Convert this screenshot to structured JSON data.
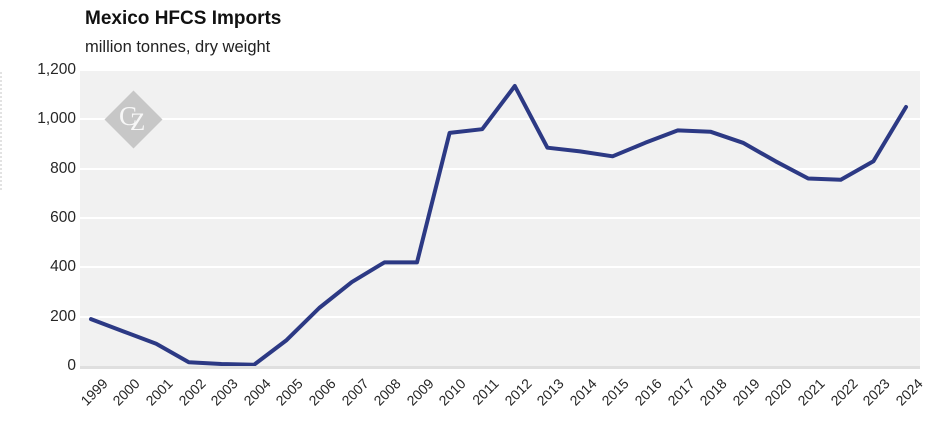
{
  "header": {
    "title": "Mexico HFCS Imports",
    "subtitle": "million tonnes, dry weight"
  },
  "watermark": {
    "letter_c": "C",
    "letter_z": "Z"
  },
  "colors": {
    "line": "#2c3984",
    "plot_background": "#f1f1f1",
    "gridline": "#ffffff",
    "axis_baseline": "#dfdfdf",
    "watermark_gray": "#c7c7c7",
    "text": "#262626"
  },
  "chart_data": {
    "type": "line",
    "title": "Mexico HFCS Imports",
    "ylabel_unit": "million tonnes, dry weight",
    "x": [
      "1999",
      "2000",
      "2001",
      "2002",
      "2003",
      "2004",
      "2005",
      "2006",
      "2007",
      "2008",
      "2009",
      "2010",
      "2011",
      "2012",
      "2013",
      "2014",
      "2015",
      "2016",
      "2017",
      "2018",
      "2019",
      "2020",
      "2021",
      "2022",
      "2023",
      "2024"
    ],
    "values": [
      190,
      140,
      90,
      15,
      8,
      5,
      105,
      235,
      340,
      420,
      420,
      945,
      960,
      1135,
      885,
      870,
      850,
      905,
      955,
      950,
      905,
      830,
      760,
      755,
      830,
      1050
    ],
    "series_name": "Mexico HFCS imports",
    "ylim": [
      0,
      1200
    ],
    "yticks": [
      0,
      200,
      400,
      600,
      800,
      1000,
      1200
    ],
    "ytick_labels": [
      "0",
      "200",
      "400",
      "600",
      "800",
      "1,000",
      "1,200"
    ],
    "grid": "horizontal-white-on-gray-panel",
    "legend": "none",
    "line_color": "#2c3984"
  }
}
